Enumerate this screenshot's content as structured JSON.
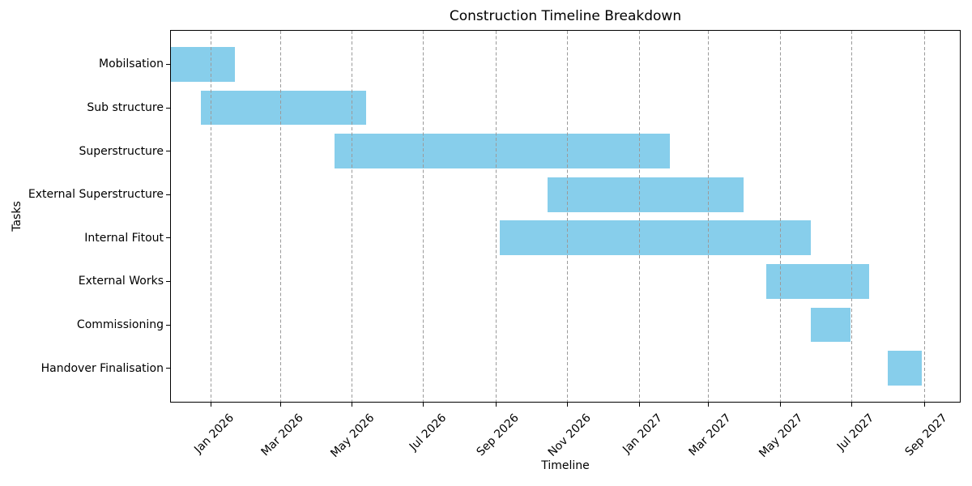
{
  "figure": {
    "title": "Construction Timeline Breakdown",
    "xlabel": "Timeline",
    "ylabel": "Tasks"
  },
  "colors": {
    "bar": "#87CEEB",
    "grid": "#9b9b9b",
    "axis": "#000000",
    "text": "#000000",
    "background": "#ffffff"
  },
  "chart_data": {
    "type": "bar",
    "subtype": "gantt-horizontal",
    "title": "Construction Timeline Breakdown",
    "xlabel": "Timeline",
    "ylabel": "Tasks",
    "bar_color": "#87CEEB",
    "grid": {
      "show": true,
      "axis": "x",
      "style": "dashed",
      "color": "#9b9b9b",
      "drawn_above_bars": true
    },
    "legend": "none",
    "axis_range": {
      "start": "2025-11-27",
      "end": "2027-10-02"
    },
    "x_ticks": [
      {
        "date": "2026-01-01",
        "label": "Jan 2026"
      },
      {
        "date": "2026-03-01",
        "label": "Mar 2026"
      },
      {
        "date": "2026-05-01",
        "label": "May 2026"
      },
      {
        "date": "2026-07-01",
        "label": "Jul 2026"
      },
      {
        "date": "2026-09-01",
        "label": "Sep 2026"
      },
      {
        "date": "2026-11-01",
        "label": "Nov 2026"
      },
      {
        "date": "2027-01-01",
        "label": "Jan 2027"
      },
      {
        "date": "2027-03-01",
        "label": "Mar 2027"
      },
      {
        "date": "2027-05-01",
        "label": "May 2027"
      },
      {
        "date": "2027-07-01",
        "label": "Jul 2027"
      },
      {
        "date": "2027-09-01",
        "label": "Sep 2027"
      }
    ],
    "tasks": [
      {
        "name": "Mobilsation",
        "start": "2025-11-27",
        "end": "2026-01-21"
      },
      {
        "name": "Sub structure",
        "start": "2025-12-23",
        "end": "2026-05-13"
      },
      {
        "name": "Superstructure",
        "start": "2026-04-16",
        "end": "2027-01-27"
      },
      {
        "name": "External Superstructure",
        "start": "2026-10-15",
        "end": "2027-03-31"
      },
      {
        "name": "Internal Fitout",
        "start": "2026-09-04",
        "end": "2027-05-27"
      },
      {
        "name": "External Works",
        "start": "2027-04-19",
        "end": "2027-07-16"
      },
      {
        "name": "Commissioning",
        "start": "2027-05-27",
        "end": "2027-06-30"
      },
      {
        "name": "Handover Finalisation",
        "start": "2027-08-01",
        "end": "2027-08-30"
      }
    ]
  }
}
